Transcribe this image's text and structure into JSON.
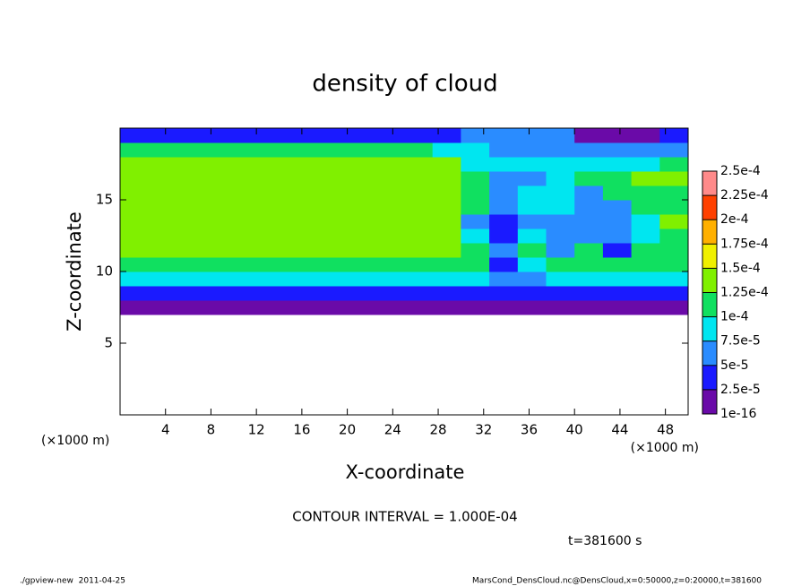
{
  "chart_data": {
    "type": "contour",
    "title": "density of cloud",
    "x_label": "X-coordinate",
    "y_label": "Z-coordinate",
    "x_unit_label": "(×1000 m)",
    "y_unit_label": "(×1000 m)",
    "contour_interval": "CONTOUR INTERVAL = 1.000E-04",
    "time_label": "t=381600 s",
    "footer_left": "./gpview-new  2011-04-25",
    "footer_right": "MarsCond_DensCloud.nc@DensCloud,x=0:50000,z=0:20000,t=381600",
    "xlim": [
      0,
      50
    ],
    "ylim": [
      0,
      20
    ],
    "xticks": [
      4,
      8,
      12,
      16,
      20,
      24,
      28,
      32,
      36,
      40,
      44,
      48
    ],
    "yticks": [
      5,
      10,
      15
    ],
    "x": [
      0,
      2.5,
      5,
      7.5,
      10,
      12.5,
      15,
      17.5,
      20,
      22.5,
      25,
      27.5,
      30,
      32.5,
      35,
      37.5,
      40,
      42.5,
      45,
      47.5,
      50
    ],
    "z": [
      7,
      8,
      9,
      10,
      11,
      12,
      13,
      14,
      15,
      16,
      17,
      18,
      19,
      20
    ],
    "values": [
      [
        2e-05,
        2e-05,
        2e-05,
        2e-05,
        2e-05,
        2e-05,
        2e-05,
        2e-05,
        2e-05,
        2e-05,
        2e-05,
        2e-05,
        2e-05,
        1e-05,
        1e-05,
        2e-05,
        2e-05,
        2e-05,
        2e-05,
        2e-05
      ],
      [
        4e-05,
        4e-05,
        4e-05,
        4e-05,
        4e-05,
        4e-05,
        4e-05,
        4e-05,
        4e-05,
        4e-05,
        4e-05,
        4e-05,
        4e-05,
        3e-05,
        3e-05,
        4e-05,
        4e-05,
        4e-05,
        4e-05,
        4e-05
      ],
      [
        8e-05,
        8e-05,
        8e-05,
        8e-05,
        8e-05,
        8e-05,
        8e-05,
        8e-05,
        8e-05,
        8e-05,
        8e-05,
        8e-05,
        8e-05,
        5e-05,
        7e-05,
        8e-05,
        8e-05,
        8e-05,
        8e-05,
        8e-05
      ],
      [
        0.00012,
        0.00012,
        0.00012,
        0.00012,
        0.00012,
        0.00012,
        0.00012,
        0.00012,
        0.00012,
        0.00012,
        0.00012,
        0.00012,
        0.00011,
        4e-05,
        9e-05,
        0.00011,
        0.00012,
        0.00012,
        0.00012,
        0.00012
      ],
      [
        0.00013,
        0.00013,
        0.00013,
        0.00013,
        0.00013,
        0.00013,
        0.00013,
        0.00013,
        0.00013,
        0.00013,
        0.00013,
        0.00013,
        0.0001,
        5e-05,
        0.00011,
        7e-05,
        0.00011,
        4e-05,
        0.00011,
        0.00011
      ],
      [
        0.000135,
        0.000135,
        0.000135,
        0.000135,
        0.000135,
        0.000135,
        0.000135,
        0.000135,
        0.000135,
        0.000135,
        0.000135,
        0.000135,
        9e-05,
        4e-05,
        8e-05,
        6e-05,
        5e-05,
        5e-05,
        8e-05,
        0.00012
      ],
      [
        0.00014,
        0.00014,
        0.00014,
        0.00014,
        0.00014,
        0.00014,
        0.00014,
        0.00014,
        0.00014,
        0.00014,
        0.00014,
        0.00014,
        7e-05,
        3e-05,
        7e-05,
        7e-05,
        6e-05,
        6e-05,
        9e-05,
        0.00013
      ],
      [
        0.00014,
        0.00014,
        0.00014,
        0.00014,
        0.00014,
        0.00014,
        0.00014,
        0.00014,
        0.00014,
        0.00014,
        0.00014,
        0.00014,
        0.0001,
        5e-05,
        8e-05,
        8e-05,
        6e-05,
        6e-05,
        0.00011,
        0.00011
      ],
      [
        0.00014,
        0.00014,
        0.00014,
        0.00014,
        0.00014,
        0.00014,
        0.00014,
        0.00014,
        0.00014,
        0.00014,
        0.00014,
        0.00014,
        0.00012,
        6e-05,
        8e-05,
        8e-05,
        7e-05,
        0.00012,
        0.00012,
        0.00012
      ],
      [
        0.000135,
        0.000135,
        0.000135,
        0.000135,
        0.000135,
        0.000135,
        0.000135,
        0.000135,
        0.000135,
        0.000135,
        0.000135,
        0.000135,
        0.00012,
        7e-05,
        7e-05,
        8e-05,
        0.000105,
        0.000105,
        0.000125,
        0.000125
      ],
      [
        0.00013,
        0.00013,
        0.00013,
        0.00013,
        0.00013,
        0.00013,
        0.00013,
        0.00013,
        0.00013,
        0.00013,
        0.00013,
        0.00013,
        9e-05,
        8e-05,
        8e-05,
        8e-05,
        9e-05,
        9e-05,
        9e-05,
        0.00011
      ],
      [
        0.00011,
        0.00011,
        0.00011,
        0.00011,
        0.00011,
        0.00011,
        0.00011,
        0.00011,
        0.00011,
        0.00011,
        0.00011,
        8e-05,
        8e-05,
        7e-05,
        7e-05,
        7e-05,
        6e-05,
        6e-05,
        6e-05,
        6e-05
      ],
      [
        4e-05,
        4e-05,
        4e-05,
        4e-05,
        4e-05,
        4e-05,
        4e-05,
        4e-05,
        4e-05,
        4e-05,
        4e-05,
        4e-05,
        6e-05,
        6e-05,
        6e-05,
        6e-05,
        1e-05,
        1e-05,
        1e-05,
        4e-05
      ]
    ],
    "levels": [
      {
        "value": 1e-16,
        "label": "1e-16"
      },
      {
        "value": 2.5e-05,
        "label": "2.5e-5"
      },
      {
        "value": 5e-05,
        "label": "5e-5"
      },
      {
        "value": 7.5e-05,
        "label": "7.5e-5"
      },
      {
        "value": 0.0001,
        "label": "1e-4"
      },
      {
        "value": 0.000125,
        "label": "1.25e-4"
      },
      {
        "value": 0.00015,
        "label": "1.5e-4"
      },
      {
        "value": 0.000175,
        "label": "1.75e-4"
      },
      {
        "value": 0.0002,
        "label": "2e-4"
      },
      {
        "value": 0.000225,
        "label": "2.25e-4"
      },
      {
        "value": 0.00025,
        "label": "2.5e-4"
      }
    ],
    "colors": [
      "#6a0aa8",
      "#1a1aff",
      "#2a8cff",
      "#00e6f0",
      "#10e060",
      "#80f000",
      "#f0f000",
      "#ffb000",
      "#ff4000",
      "#ff8a8a"
    ]
  }
}
